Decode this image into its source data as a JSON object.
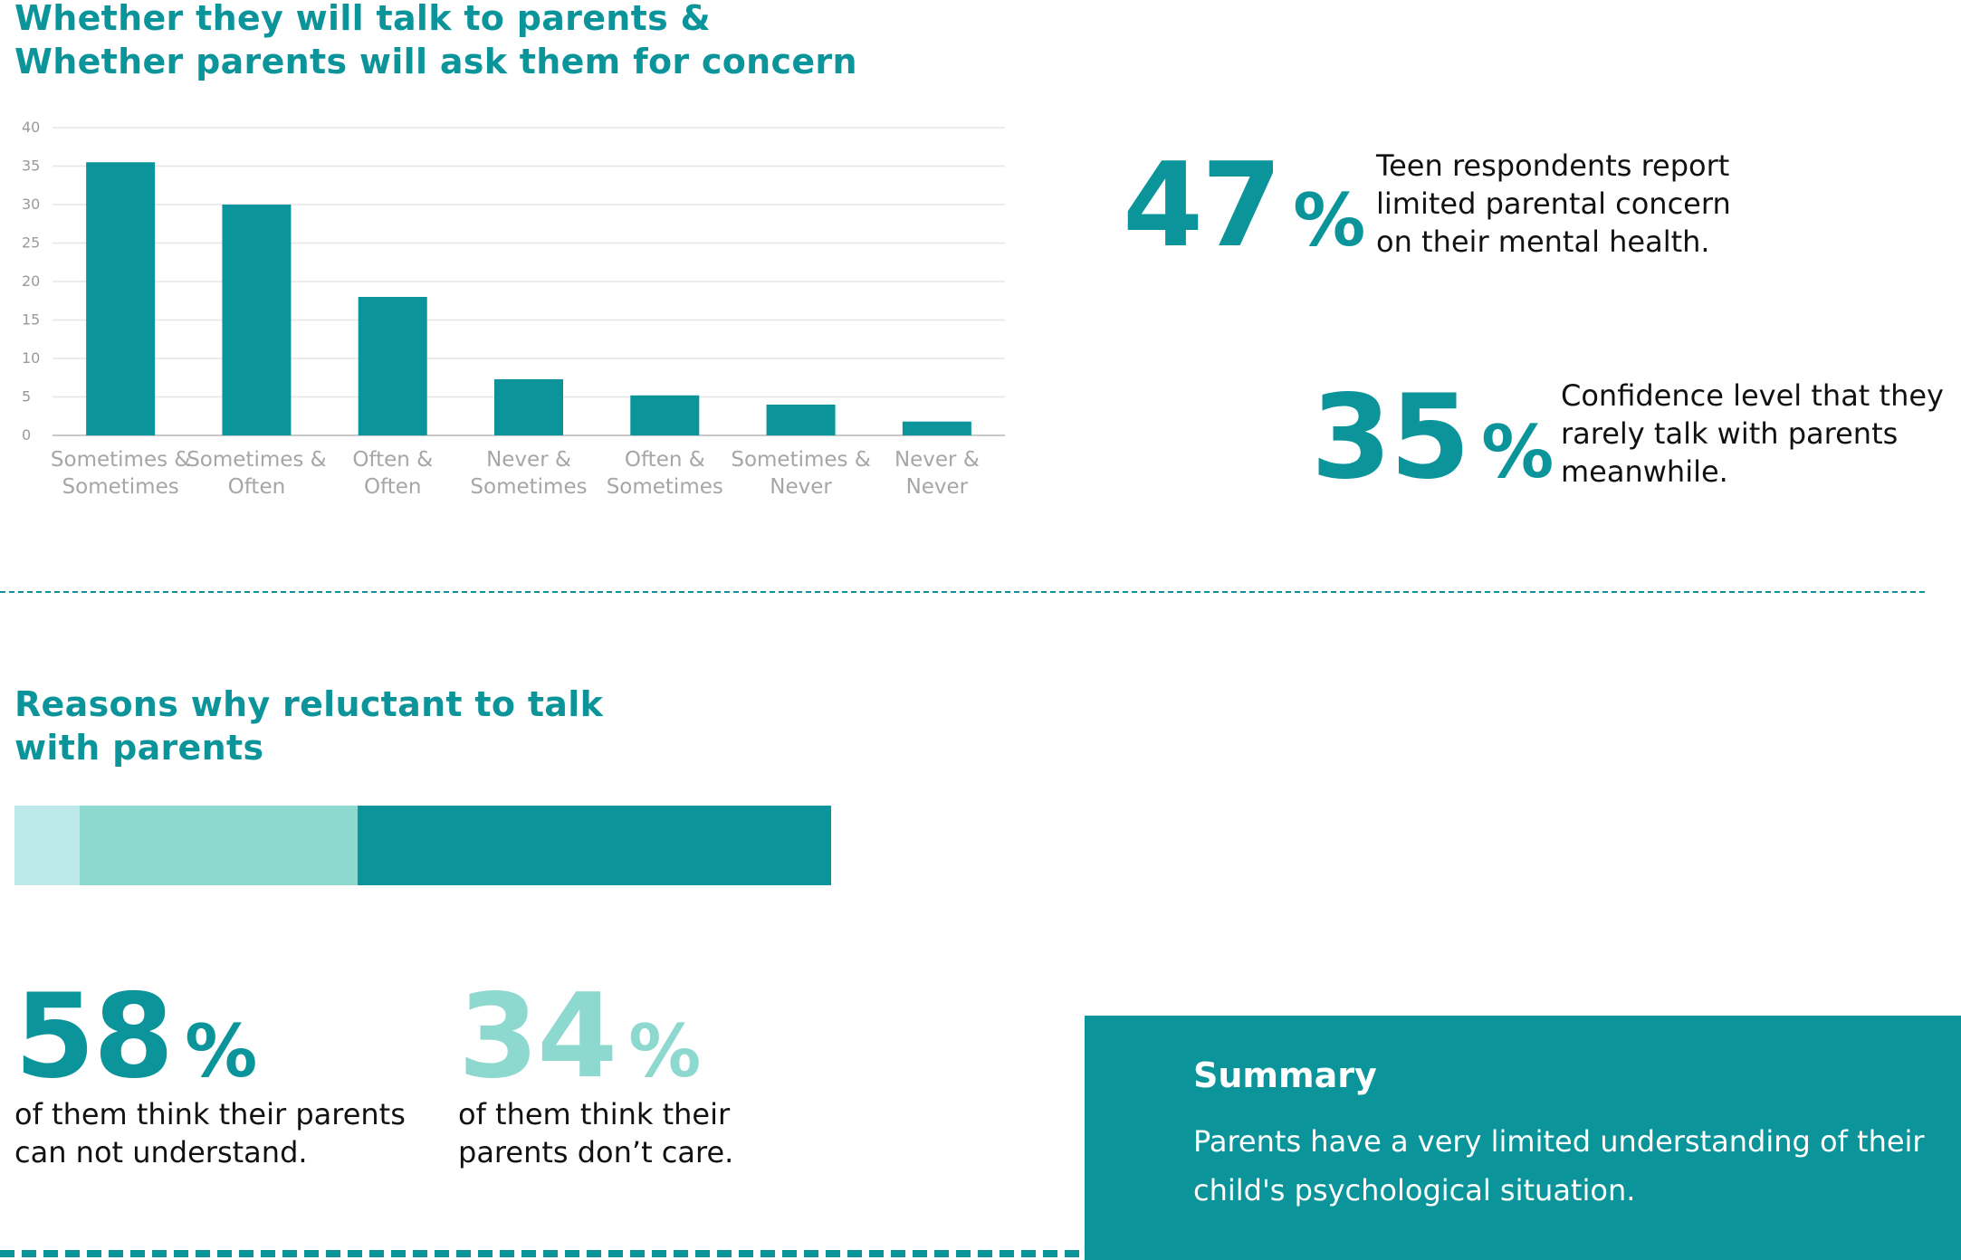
{
  "top_heading": {
    "line1": "Whether they will talk to parents &",
    "line2": "Whether parents will ask them for concern"
  },
  "chart_data": {
    "type": "bar",
    "categories": [
      [
        "Sometimes &",
        "Sometimes"
      ],
      [
        "Sometimes &",
        "Often"
      ],
      [
        "Often &",
        "Often"
      ],
      [
        "Never &",
        "Sometimes"
      ],
      [
        "Often &",
        "Sometimes"
      ],
      [
        "Sometimes &",
        "Never"
      ],
      [
        "Never &",
        "Never"
      ]
    ],
    "values": [
      35.5,
      30,
      18,
      7.3,
      5.2,
      4,
      1.8
    ],
    "ylim": [
      0,
      40
    ],
    "yticks": [
      "0",
      "5",
      "10",
      "15",
      "20",
      "25",
      "30",
      "35",
      "40"
    ],
    "grid": true,
    "bar_color": "#0b959b"
  },
  "stat_47": {
    "number": "47",
    "percent": "%",
    "line1": "Teen respondents report",
    "line2": "limited parental concern",
    "line3": "on their mental health."
  },
  "stat_35": {
    "number": "35",
    "percent": "%",
    "line1": "Confidence level that they",
    "line2": "rarely talk with parents",
    "line3": "meanwhile."
  },
  "reasons_heading": {
    "line1": "Reasons why reluctant to talk",
    "line2": "with parents"
  },
  "reasons_bar": {
    "segments": [
      {
        "share": 0.08,
        "color": "#bce8e9"
      },
      {
        "share": 0.34,
        "color": "#8dd8cf"
      },
      {
        "share": 0.58,
        "color": "#0b959b"
      }
    ]
  },
  "stat_58": {
    "number": "58",
    "percent": "%",
    "line1": "of them think their parents",
    "line2": "can not understand.",
    "color": "#0b959b"
  },
  "stat_34": {
    "number": "34",
    "percent": "%",
    "line1": "of them think their",
    "line2": "parents don’t care.",
    "color": "#8dd8cf"
  },
  "summary": {
    "title": "Summary",
    "line1": "Parents have a very limited understanding of their",
    "line2": "child's psychological situation."
  }
}
